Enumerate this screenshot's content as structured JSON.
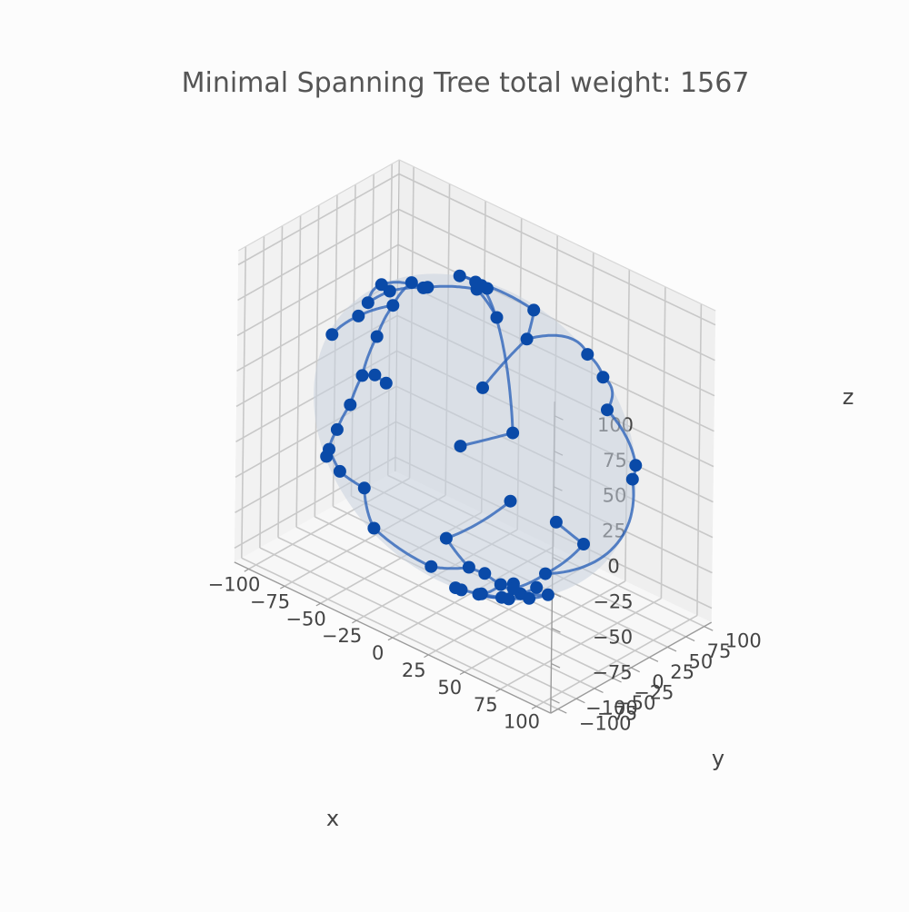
{
  "chart_data": {
    "type": "scatter",
    "projection": "3d",
    "title": "Minimal Spanning Tree total weight: 1567",
    "xlabel": "x",
    "ylabel": "y",
    "zlabel": "z",
    "xlim": [
      -110,
      110
    ],
    "ylim": [
      -110,
      110
    ],
    "zlim": [
      -110,
      110
    ],
    "xticks": [
      -100,
      -75,
      -50,
      -25,
      0,
      25,
      50,
      75,
      100
    ],
    "yticks": [
      -100,
      -75,
      -50,
      -25,
      0,
      25,
      50,
      75,
      100
    ],
    "zticks": [
      -100,
      -75,
      -50,
      -25,
      0,
      25,
      50,
      75,
      100
    ],
    "xtick_labels": [
      "−100",
      "−75",
      "−50",
      "−25",
      "0",
      "25",
      "50",
      "75",
      "100"
    ],
    "ytick_labels": [
      "−100",
      "−75",
      "−50",
      "−25",
      "0",
      "25",
      "50",
      "75",
      "100"
    ],
    "ztick_labels": [
      "−100",
      "−75",
      "−50",
      "−25",
      "0",
      "25",
      "50",
      "75",
      "100"
    ],
    "grid": true,
    "sphere_radius": 100,
    "colors": {
      "points": "#0a4aa8",
      "edges": "#2a62b8",
      "sphere": "#c9d2de",
      "grid": "#c8c8c8",
      "axis": "#9a9a9a"
    },
    "points": [
      [
        -2,
        18,
        98
      ],
      [
        -4,
        8,
        99
      ],
      [
        20,
        -12,
        97
      ],
      [
        -28,
        -12,
        95
      ],
      [
        -12,
        22,
        97
      ],
      [
        -70,
        8,
        71
      ],
      [
        -50,
        -20,
        84
      ],
      [
        -28,
        32,
        90
      ],
      [
        24,
        30,
        91
      ],
      [
        40,
        -10,
        91
      ],
      [
        -62,
        50,
        60
      ],
      [
        -64,
        38,
        66
      ],
      [
        -80,
        44,
        41
      ],
      [
        42,
        70,
        58
      ],
      [
        -60,
        -30,
        74
      ],
      [
        -92,
        20,
        35
      ],
      [
        -96,
        -8,
        28
      ],
      [
        -90,
        42,
        15
      ],
      [
        -26,
        58,
        77
      ],
      [
        66,
        44,
        61
      ],
      [
        48,
        86,
        17
      ],
      [
        86,
        52,
        6
      ],
      [
        80,
        62,
        -10
      ],
      [
        36,
        -62,
        70
      ],
      [
        -20,
        92,
        -34
      ],
      [
        -46,
        72,
        -50
      ],
      [
        74,
        -48,
        -47
      ],
      [
        -96,
        32,
        -12
      ],
      [
        -86,
        48,
        -18
      ],
      [
        -88,
        40,
        -12
      ],
      [
        -94,
        16,
        -28
      ],
      [
        -92,
        -6,
        -38
      ],
      [
        -80,
        -44,
        -40
      ],
      [
        -86,
        -30,
        -42
      ],
      [
        -78,
        -28,
        -54
      ],
      [
        -72,
        -8,
        -69
      ],
      [
        -50,
        -38,
        -78
      ],
      [
        -20,
        -18,
        -96
      ],
      [
        -30,
        22,
        -93
      ],
      [
        12,
        -40,
        -91
      ],
      [
        -8,
        10,
        -99
      ],
      [
        2,
        12,
        -99
      ],
      [
        16,
        6,
        -98
      ],
      [
        22,
        12,
        -97
      ],
      [
        34,
        -2,
        -94
      ],
      [
        38,
        12,
        -92
      ],
      [
        18,
        -24,
        -95
      ],
      [
        30,
        -20,
        -93
      ],
      [
        48,
        -18,
        -86
      ],
      [
        62,
        -20,
        -76
      ],
      [
        54,
        -52,
        -66
      ],
      [
        92,
        -32,
        -22
      ],
      [
        84,
        -54,
        -4
      ],
      [
        -10,
        70,
        -71
      ],
      [
        8,
        -40,
        -91
      ],
      [
        26,
        -44,
        -86
      ],
      [
        40,
        -30,
        -87
      ]
    ],
    "edges": [
      [
        0,
        1
      ],
      [
        1,
        2
      ],
      [
        1,
        3
      ],
      [
        0,
        4
      ],
      [
        4,
        7
      ],
      [
        7,
        18
      ],
      [
        3,
        6
      ],
      [
        6,
        14
      ],
      [
        14,
        5
      ],
      [
        5,
        10
      ],
      [
        10,
        11
      ],
      [
        11,
        12
      ],
      [
        12,
        15
      ],
      [
        15,
        16
      ],
      [
        12,
        17
      ],
      [
        4,
        8
      ],
      [
        8,
        9
      ],
      [
        9,
        13
      ],
      [
        13,
        19
      ],
      [
        19,
        20
      ],
      [
        20,
        21
      ],
      [
        21,
        22
      ],
      [
        9,
        23
      ],
      [
        18,
        24
      ],
      [
        24,
        25
      ],
      [
        22,
        26
      ],
      [
        17,
        27
      ],
      [
        27,
        29
      ],
      [
        29,
        28
      ],
      [
        27,
        30
      ],
      [
        30,
        31
      ],
      [
        31,
        33
      ],
      [
        33,
        32
      ],
      [
        33,
        34
      ],
      [
        34,
        35
      ],
      [
        35,
        36
      ],
      [
        36,
        37
      ],
      [
        37,
        40
      ],
      [
        40,
        38
      ],
      [
        40,
        41
      ],
      [
        41,
        42
      ],
      [
        42,
        43
      ],
      [
        42,
        44
      ],
      [
        44,
        45
      ],
      [
        42,
        46
      ],
      [
        46,
        54
      ],
      [
        46,
        47
      ],
      [
        47,
        48
      ],
      [
        48,
        49
      ],
      [
        49,
        50
      ],
      [
        50,
        26
      ],
      [
        26,
        51
      ],
      [
        51,
        52
      ],
      [
        38,
        53
      ],
      [
        47,
        55
      ],
      [
        55,
        56
      ]
    ]
  }
}
